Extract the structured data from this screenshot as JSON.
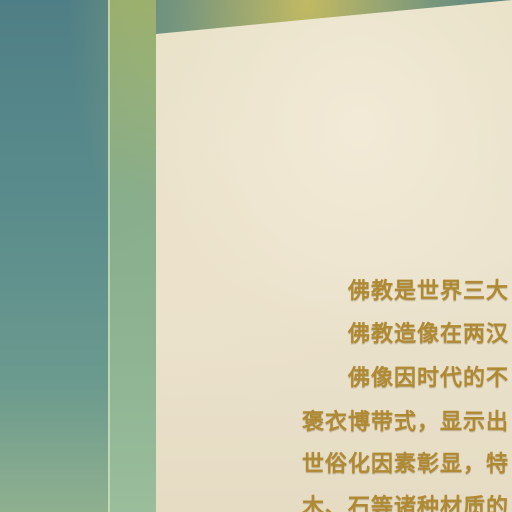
{
  "panel": {
    "lines": [
      "佛教是世界三大",
      "佛教造像在两汉",
      "佛像因时代的不",
      "褒衣博带式，显示出",
      "世俗化因素彰显，特",
      "木、石等诸种材质的"
    ]
  }
}
